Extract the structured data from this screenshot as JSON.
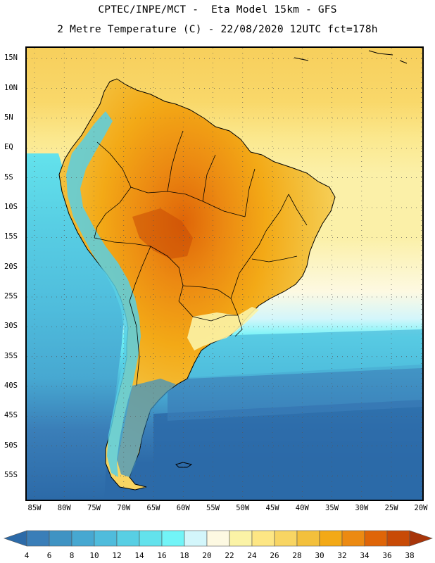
{
  "title": {
    "line1": "CPTEC/INPE/MCT -  Eta Model 15km - GFS",
    "line2": "2 Metre Temperature (C) - 22/08/2020 12UTC fct=178h"
  },
  "map": {
    "lat_labels": [
      "15N",
      "10N",
      "5N",
      "EQ",
      "5S",
      "10S",
      "15S",
      "20S",
      "25S",
      "30S",
      "35S",
      "40S",
      "45S",
      "50S",
      "55S"
    ],
    "lon_labels": [
      "85W",
      "80W",
      "75W",
      "70W",
      "65W",
      "60W",
      "55W",
      "50W",
      "45W",
      "40W",
      "35W",
      "30W",
      "25W",
      "20W"
    ],
    "lat_values": [
      15,
      10,
      5,
      0,
      -5,
      -10,
      -15,
      -20,
      -25,
      -30,
      -35,
      -40,
      -45,
      -50,
      -55
    ],
    "lon_values": [
      -85,
      -80,
      -75,
      -70,
      -65,
      -60,
      -55,
      -50,
      -45,
      -40,
      -35,
      -30,
      -25,
      -20
    ]
  },
  "colorbar": {
    "labels": [
      "4",
      "6",
      "8",
      "10",
      "12",
      "14",
      "16",
      "18",
      "20",
      "22",
      "24",
      "26",
      "28",
      "30",
      "32",
      "34",
      "36",
      "38"
    ],
    "colors": [
      "#2c6aa8",
      "#3a7eb8",
      "#3f93c3",
      "#47a8d1",
      "#4fbcdc",
      "#58cfe4",
      "#63e2ec",
      "#72f4f7",
      "#d3f6fb",
      "#fdf9e2",
      "#fbf3a6",
      "#fde684",
      "#f8d563",
      "#f3c03c",
      "#f3a916",
      "#ec8a12",
      "#df6508",
      "#c84a06",
      "#a8350a"
    ]
  }
}
